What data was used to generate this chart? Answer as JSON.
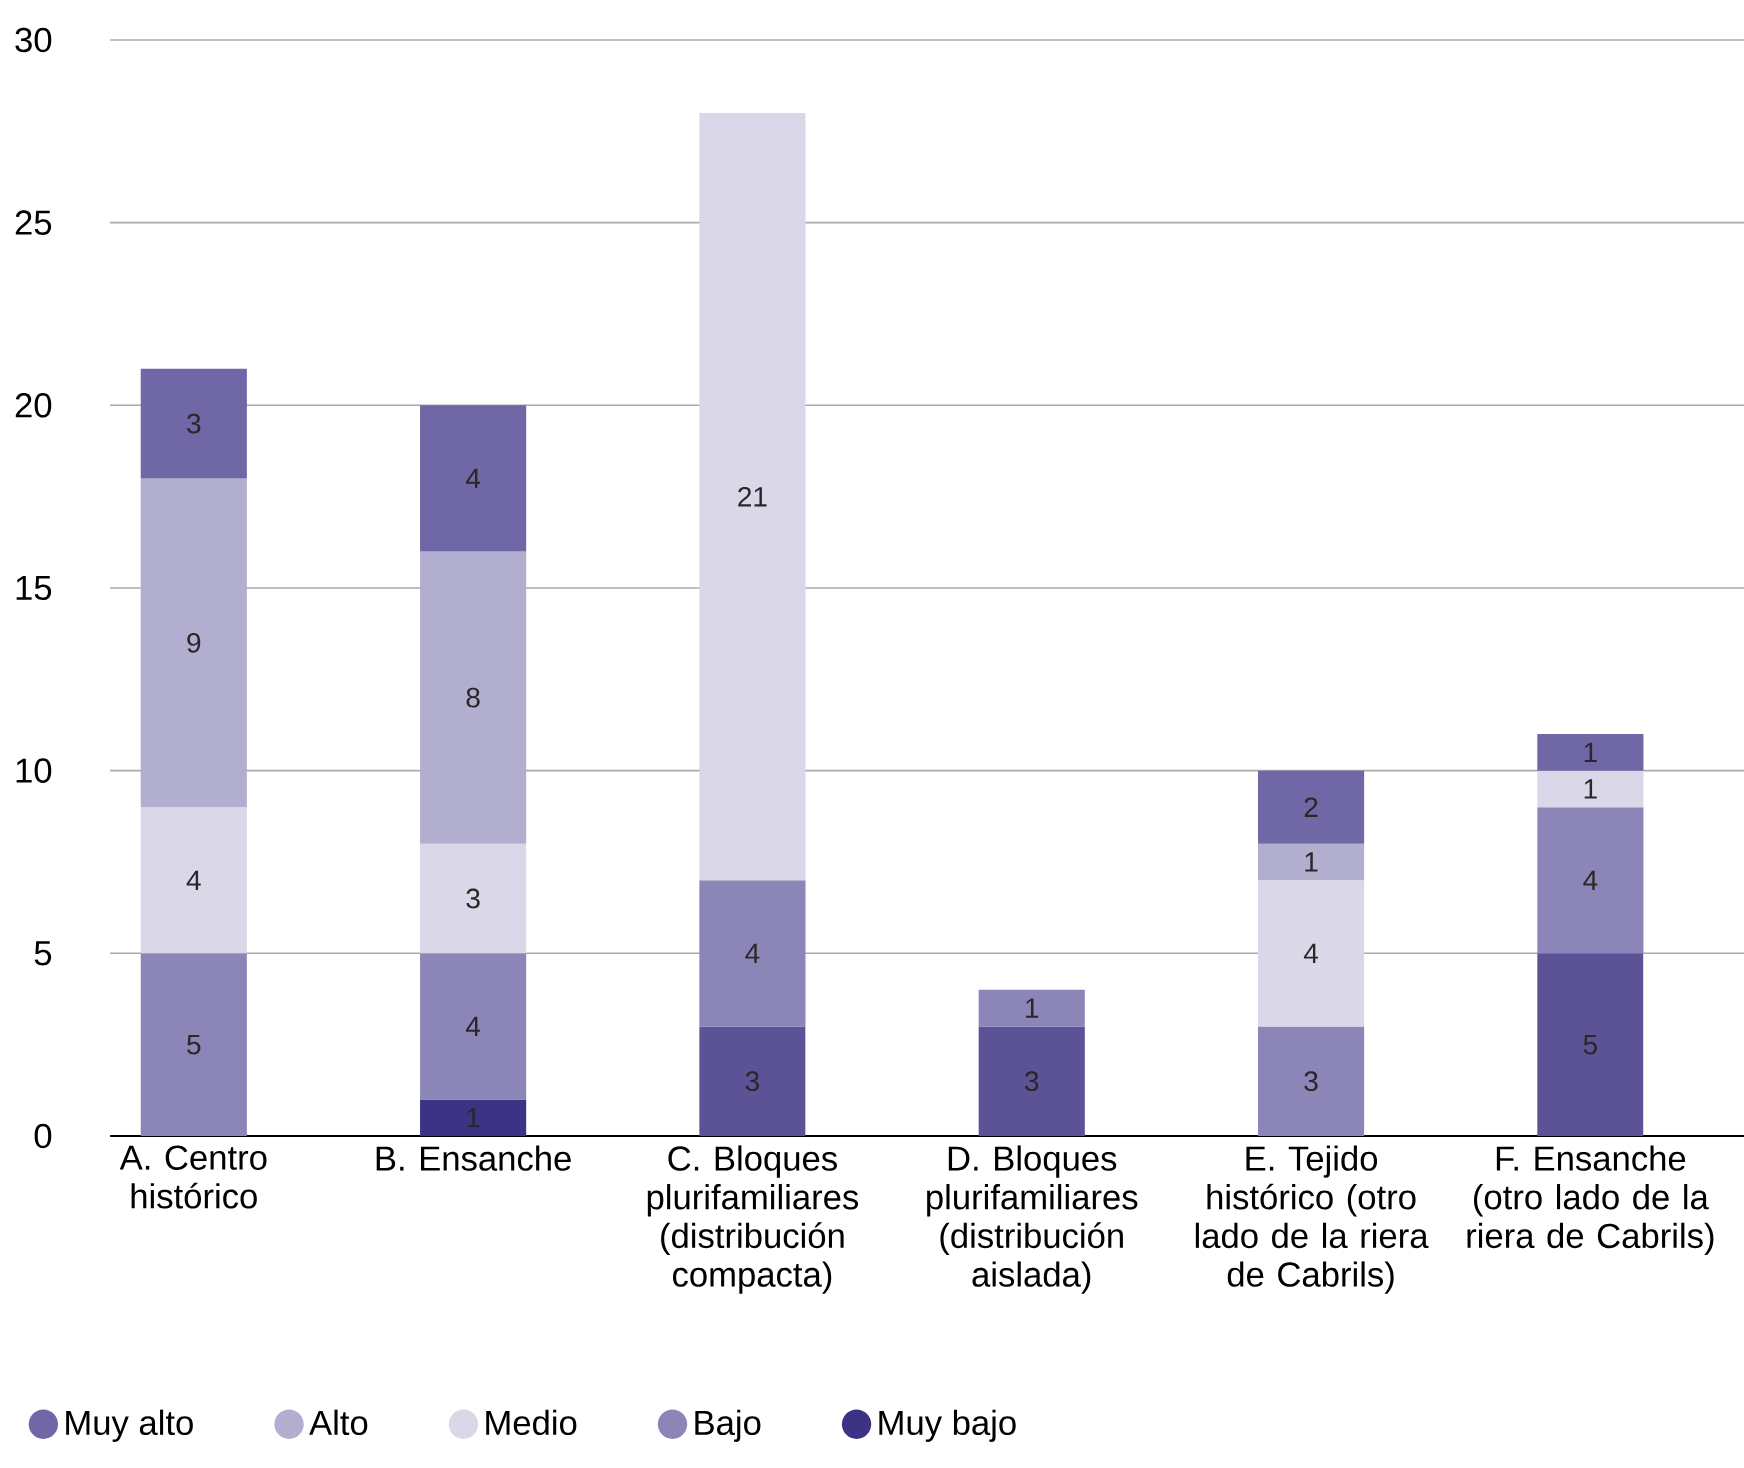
{
  "chart_data": {
    "type": "bar",
    "stacked": true,
    "categories": [
      "A. Centro histórico",
      "B. Ensanche",
      "C. Bloques plurifamiliares (distribución compacta)",
      "D. Bloques plurifamiliares (distribución aislada)",
      "E. Tejido histórico (otro lado de la riera de Cabrils)",
      "F. Ensanche (otro lado de la riera de Cabrils)"
    ],
    "series": [
      {
        "name": "Muy bajo",
        "color": "#3d3385",
        "colors": [
          "#5c5397",
          "#3d3385",
          "#5c5397",
          "#5c5397",
          "#5c5397",
          "#5c5397"
        ],
        "values": [
          null,
          1,
          3,
          3,
          null,
          5
        ]
      },
      {
        "name": "Bajo",
        "color": "#8b86b7",
        "values": [
          5,
          4,
          4,
          1,
          3,
          4
        ]
      },
      {
        "name": "Medio",
        "color": "#dad7e9",
        "values": [
          4,
          3,
          21,
          null,
          4,
          1
        ]
      },
      {
        "name": "Alto",
        "color": "#b2aed0",
        "values": [
          9,
          8,
          null,
          null,
          1,
          null
        ]
      },
      {
        "name": "Muy alto",
        "color": "#6f67a6",
        "values": [
          3,
          4,
          null,
          null,
          2,
          1
        ]
      }
    ],
    "data_labels": true,
    "ylim": [
      0,
      30
    ],
    "yticks": [
      0,
      5,
      10,
      15,
      20,
      25,
      30
    ],
    "grid": "y",
    "legend": "bottom"
  }
}
